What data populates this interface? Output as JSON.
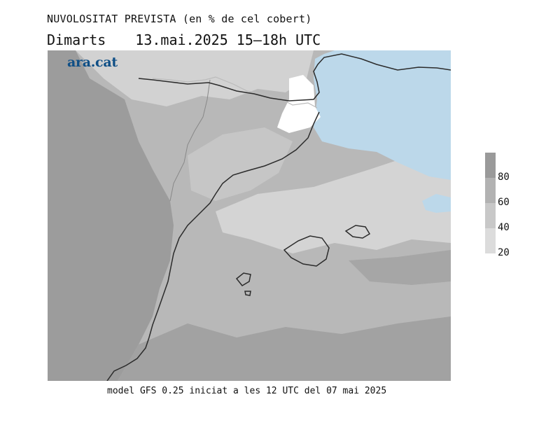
{
  "header": {
    "title": "NUVOLOSITAT PREVISTA (en % de cel cobert)",
    "day": "Dimarts",
    "datetime": "13.mai.2025 15–18h UTC"
  },
  "logo": {
    "text": "ara.cat"
  },
  "footer": {
    "note": "model GFS 0.25 iniciat a les 12 UTC del 07 mai 2025"
  },
  "legend": {
    "unit": "% de cel cobert",
    "levels": [
      {
        "label": "80",
        "color": "#9a9a9a"
      },
      {
        "label": "60",
        "color": "#b2b2b2"
      },
      {
        "label": "40",
        "color": "#c8c8c8"
      },
      {
        "label": "20",
        "color": "#dcdcdc"
      }
    ],
    "clear_sea_color": "#bcd8ea",
    "clear_land_color": "#ffffff"
  }
}
